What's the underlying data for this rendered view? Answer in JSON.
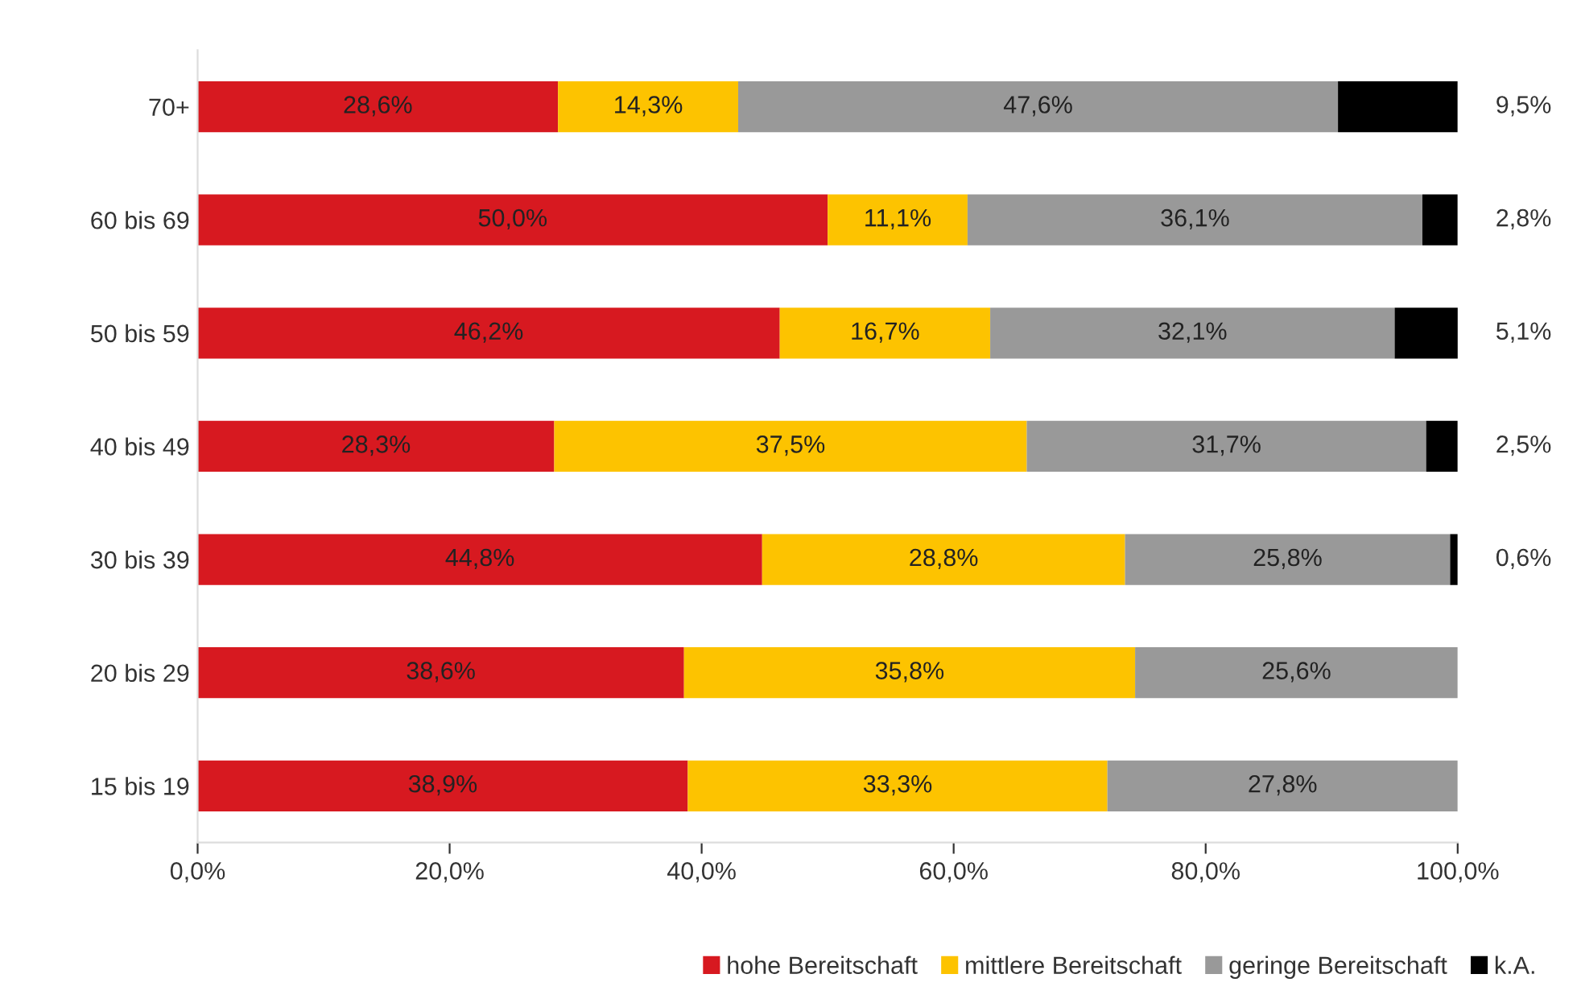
{
  "chart_data": {
    "type": "bar",
    "orientation": "horizontal",
    "stacked": true,
    "legend": "bottom",
    "grid": false,
    "categories": [
      "70+",
      "60 bis 69",
      "50 bis 59",
      "40 bis 49",
      "30 bis 39",
      "20 bis 29",
      "15 bis 19"
    ],
    "xlim": [
      0,
      100
    ],
    "xticks": [
      {
        "value": 0,
        "label": "0,0%"
      },
      {
        "value": 20,
        "label": "20,0%"
      },
      {
        "value": 40,
        "label": "40,0%"
      },
      {
        "value": 60,
        "label": "60,0%"
      },
      {
        "value": 80,
        "label": "80,0%"
      },
      {
        "value": 100,
        "label": "100,0%"
      }
    ],
    "series": [
      {
        "name": "hohe Bereitschaft",
        "color": "#d71920",
        "values": [
          28.6,
          50.0,
          46.2,
          28.3,
          44.8,
          38.6,
          38.9
        ],
        "value_labels": [
          "28,6%",
          "50,0%",
          "46,2%",
          "28,3%",
          "44,8%",
          "38,6%",
          "38,9%"
        ]
      },
      {
        "name": "mittlere Bereitschaft",
        "color": "#fdc300",
        "values": [
          14.3,
          11.1,
          16.7,
          37.5,
          28.8,
          35.8,
          33.3
        ],
        "value_labels": [
          "14,3%",
          "11,1%",
          "16,7%",
          "37,5%",
          "28,8%",
          "35,8%",
          "33,3%"
        ]
      },
      {
        "name": "geringe Bereitschaft",
        "color": "#999999",
        "values": [
          47.6,
          36.1,
          32.1,
          31.7,
          25.8,
          25.6,
          27.8
        ],
        "value_labels": [
          "47,6%",
          "36,1%",
          "32,1%",
          "31,7%",
          "25,8%",
          "25,6%",
          "27,8%"
        ]
      },
      {
        "name": "k.A.",
        "color": "#000000",
        "values": [
          9.5,
          2.8,
          5.1,
          2.5,
          0.6,
          null,
          null
        ],
        "value_labels": [
          "9,5%",
          "2,8%",
          "5,1%",
          "2,5%",
          "0,6%",
          null,
          null
        ]
      }
    ]
  }
}
